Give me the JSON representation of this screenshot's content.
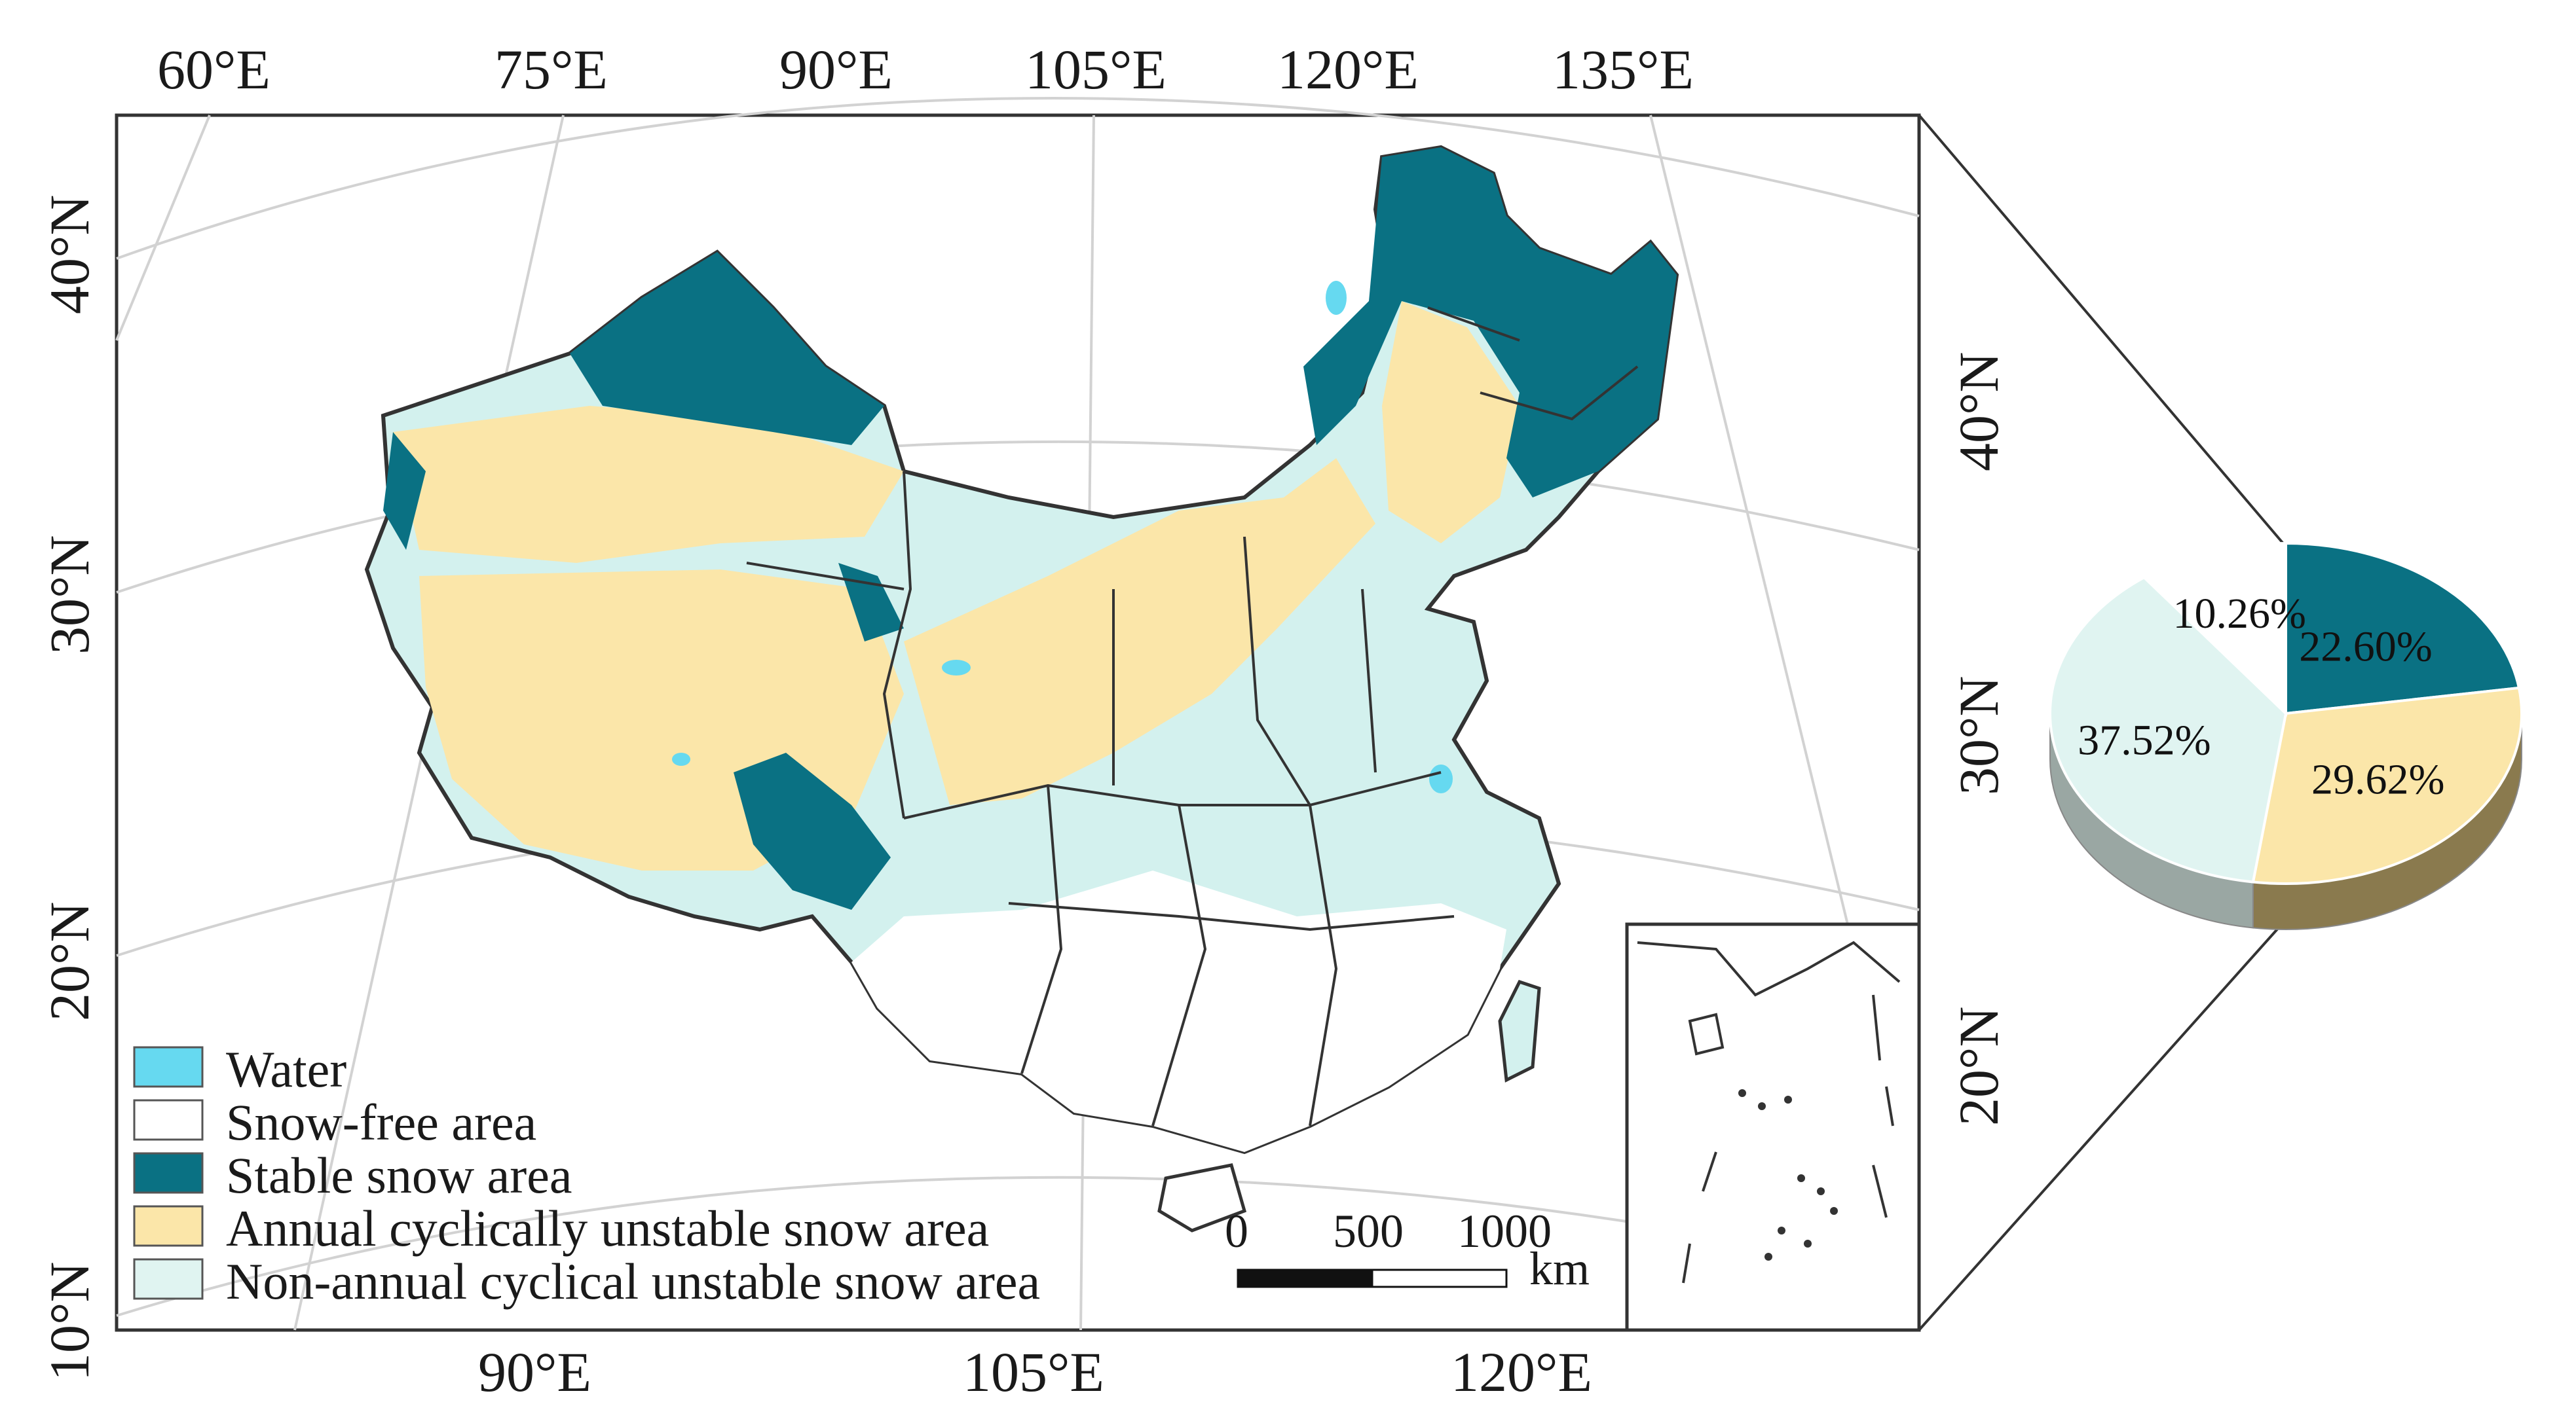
{
  "map": {
    "graticule_top": [
      "60°E",
      "75°E",
      "90°E",
      "105°E",
      "120°E",
      "135°E"
    ],
    "graticule_bottom": [
      "90°E",
      "105°E",
      "120°E"
    ],
    "graticule_left": [
      "40°N",
      "30°N",
      "20°N",
      "10°N"
    ],
    "graticule_right": [
      "40°N",
      "30°N",
      "20°N"
    ],
    "colors": {
      "water": "#66d9f0",
      "snow_free": "#ffffff",
      "stable": "#0a7183",
      "annual": "#fbe6a9",
      "non_annual": "#d3f1ee",
      "border": "#333333"
    }
  },
  "legend": {
    "items": [
      {
        "label": "Water",
        "color": "#66d9f0"
      },
      {
        "label": "Snow-free area",
        "color": "#ffffff"
      },
      {
        "label": "Stable snow area",
        "color": "#0a7183"
      },
      {
        "label": "Annual cyclically unstable snow area",
        "color": "#fbe6a9"
      },
      {
        "label": "Non-annual cyclical unstable snow area",
        "color": "#e0f4f1"
      }
    ]
  },
  "scale_bar": {
    "ticks": [
      "0",
      "500",
      "1000"
    ],
    "unit": "km"
  },
  "pie": {
    "slices": [
      {
        "label": "22.60%",
        "value": 22.6,
        "color": "#0a7183",
        "side": "#075361"
      },
      {
        "label": "29.62%",
        "value": 29.62,
        "color": "#fbe6a9",
        "side": "#8a7a4e"
      },
      {
        "label": "37.52%",
        "value": 37.52,
        "color": "#e0f4f1",
        "side": "#9aa7a3"
      },
      {
        "label": "10.26%",
        "value": 10.26,
        "color": "#ffffff",
        "side": "#b5b5b5"
      }
    ]
  }
}
